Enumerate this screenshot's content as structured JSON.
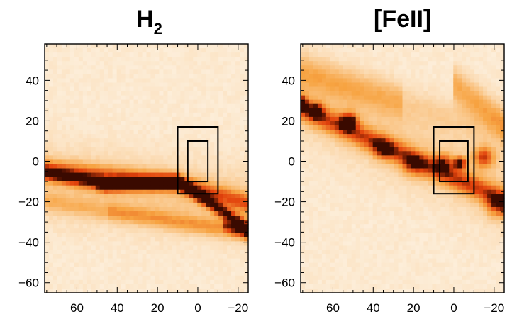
{
  "panels": [
    {
      "title_main": "H",
      "title_sub": "2",
      "x_ticks": [
        60,
        40,
        20,
        0,
        -20
      ],
      "x_tick_labels": [
        "60",
        "40",
        "20",
        "0",
        "−20"
      ],
      "y_ticks": [
        40,
        20,
        0,
        -20,
        -40,
        -60
      ],
      "y_tick_labels": [
        "40",
        "20",
        "0",
        "−20",
        "−40",
        "−60"
      ],
      "xlim": [
        76,
        -25
      ],
      "ylim": [
        -65,
        58
      ],
      "boxes": [
        {
          "x0": 10,
          "x1": -10,
          "y0": -16,
          "y1": 17
        },
        {
          "x0": 5,
          "x1": -5,
          "y0": -10,
          "y1": 10
        }
      ]
    },
    {
      "title_main": "[FeII]",
      "title_sub": "",
      "x_ticks": [
        60,
        40,
        20,
        0,
        -20
      ],
      "x_tick_labels": [
        "60",
        "40",
        "20",
        "0",
        "−20"
      ],
      "y_ticks": [
        40,
        20,
        0,
        -20,
        -40,
        -60
      ],
      "y_tick_labels": [
        "40",
        "20",
        "0",
        "−20",
        "−40",
        "−60"
      ],
      "xlim": [
        76,
        -25
      ],
      "ylim": [
        -65,
        58
      ],
      "boxes": [
        {
          "x0": 10,
          "x1": -10,
          "y0": -16,
          "y1": 17
        },
        {
          "x0": 7,
          "x1": -7,
          "y0": -10,
          "y1": 10
        }
      ]
    }
  ],
  "colors": {
    "background": "#ffffff",
    "map_low": "#fdf3e4",
    "map_mid": "#f7a341",
    "map_high": "#e2420c",
    "map_peak": "#3a0a00",
    "axes": "#000000"
  }
}
